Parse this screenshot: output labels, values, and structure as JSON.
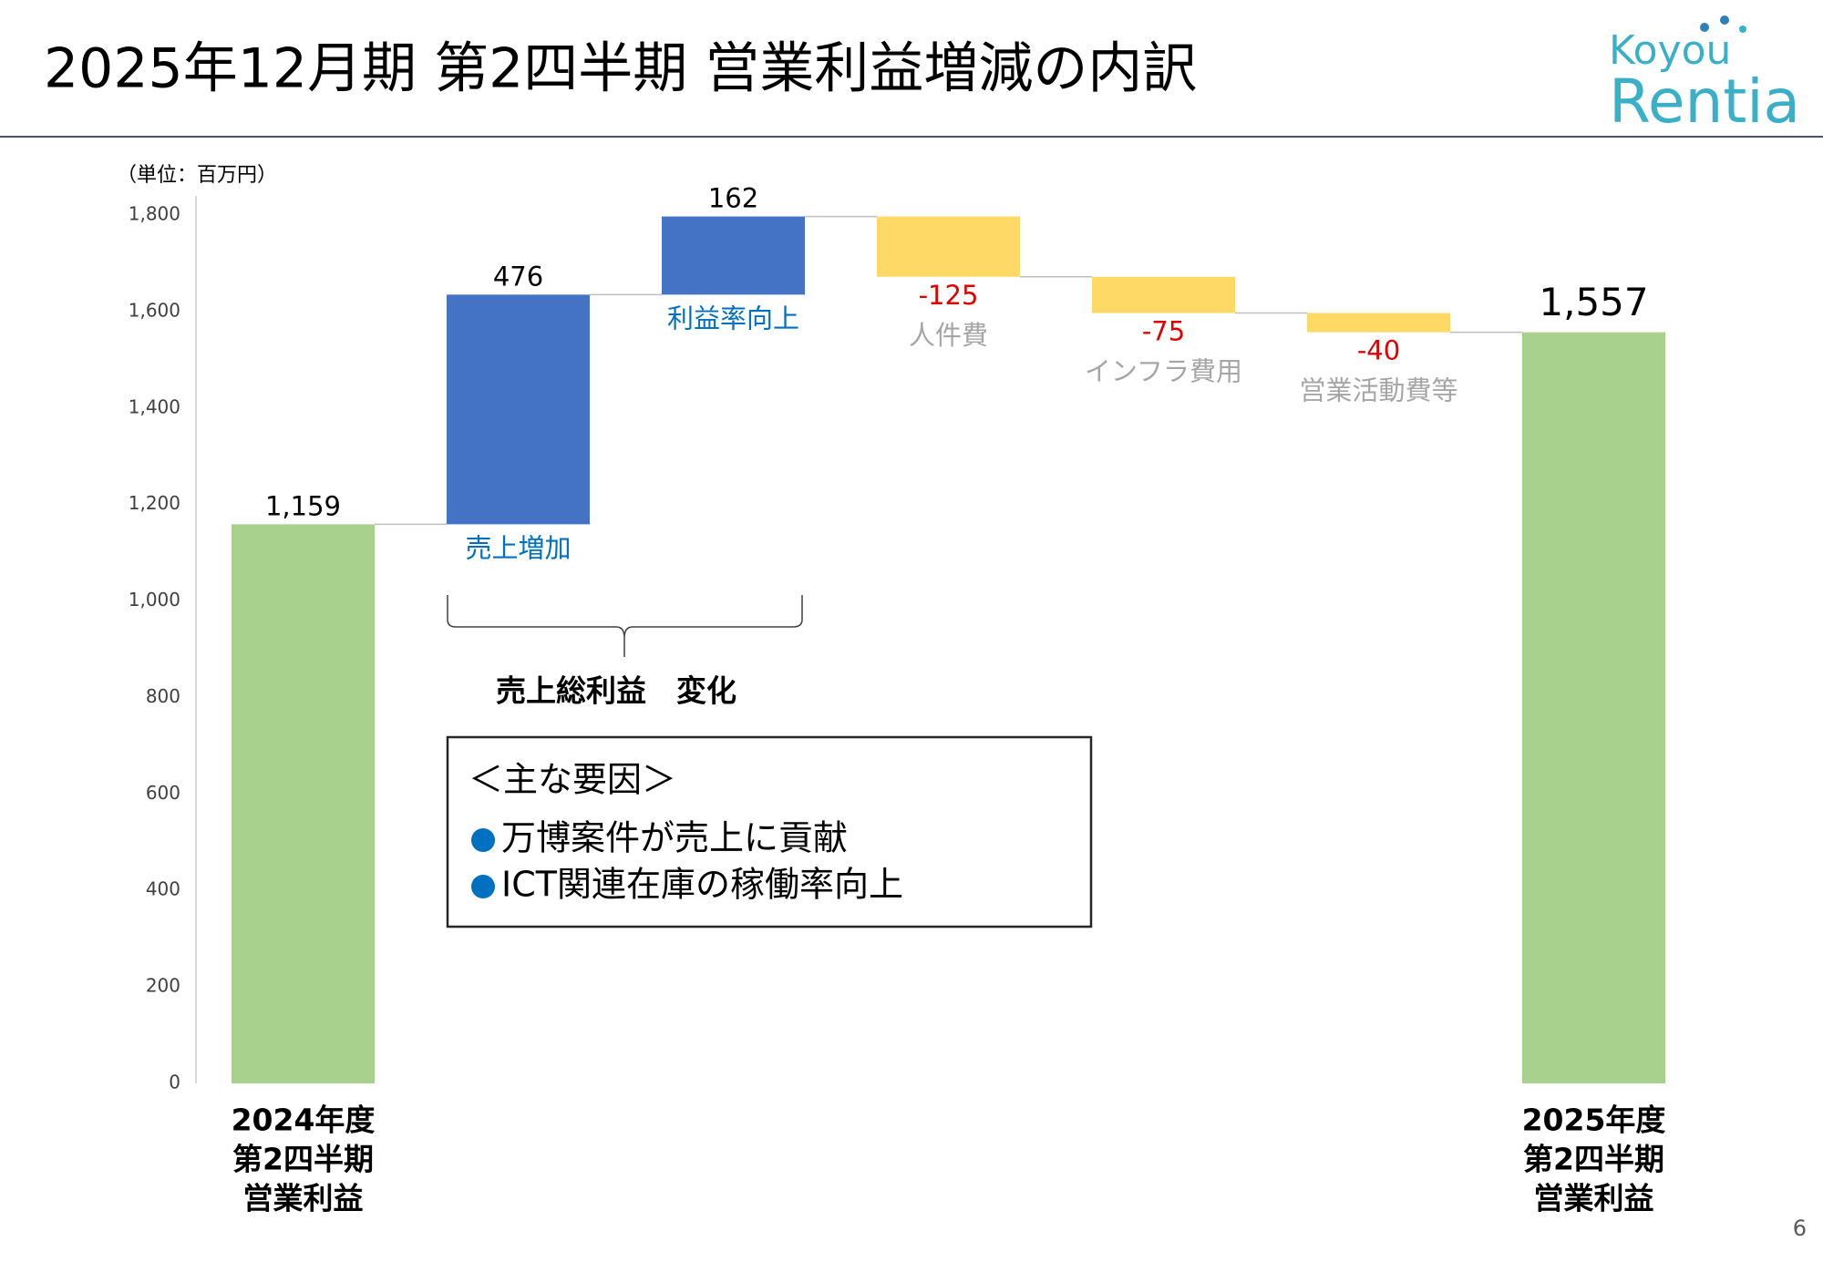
{
  "header": {
    "title": "2025年12月期 第2四半期 営業利益増減の内訳",
    "logo_top": "Koyou",
    "logo_bottom": "Rentia"
  },
  "chart_data": {
    "type": "waterfall",
    "unit_label": "（単位：百万円）",
    "categories": [
      [
        "2024年度",
        "第2四半期",
        "営業利益"
      ],
      "売上増加",
      "利益率向上",
      "人件費",
      "インフラ費用",
      "営業活動費等",
      [
        "2025年度",
        "第2四半期",
        "営業利益"
      ]
    ],
    "measure": [
      "absolute",
      "relative",
      "relative",
      "relative",
      "relative",
      "relative",
      "total"
    ],
    "values": [
      1159,
      476,
      162,
      -125,
      -75,
      -40,
      1557
    ],
    "value_labels": [
      "1,159",
      "476",
      "162",
      "-125",
      "-75",
      "-40",
      "1,557"
    ],
    "colors": [
      "#a9d18e",
      "#4472c4",
      "#4472c4",
      "#ffd966",
      "#ffd966",
      "#ffd966",
      "#a9d18e"
    ],
    "ylim": [
      0,
      1800
    ],
    "yticks": [
      0,
      200,
      400,
      600,
      800,
      {
        "value": 1000,
        "label": "1,000"
      },
      {
        "value": 1200,
        "label": "1,200"
      },
      {
        "value": 1400,
        "label": "1,400"
      },
      {
        "value": 1600,
        "label": "1,600"
      },
      {
        "value": 1800,
        "label": "1,800"
      }
    ],
    "annotation": "売上総利益　変化",
    "factors": {
      "heading": "＜主な要因＞",
      "items": [
        "万博案件が売上に貢献",
        "ICT関連在庫の稼働率向上"
      ]
    }
  },
  "page_number": "6"
}
